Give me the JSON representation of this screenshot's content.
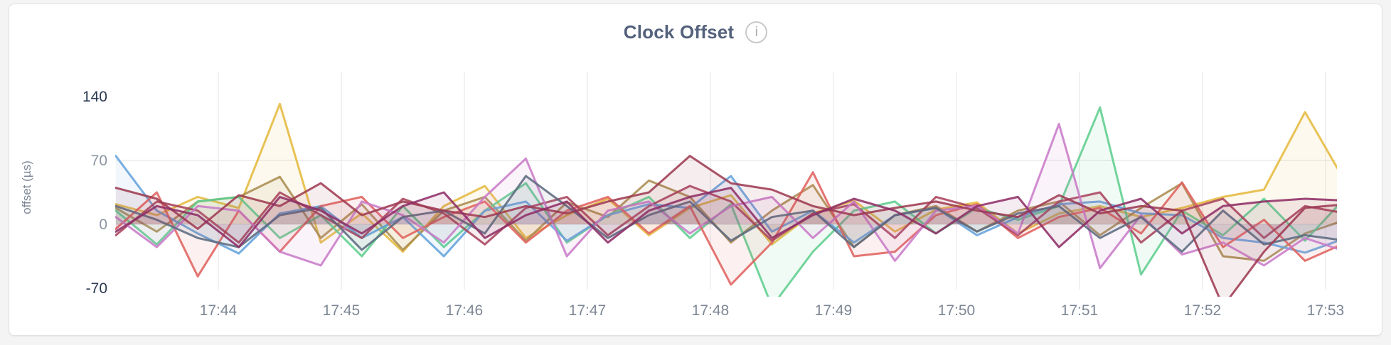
{
  "page": {
    "background": "#f4f4f5"
  },
  "card": {
    "background": "#ffffff",
    "border_color": "#e2e2e4"
  },
  "header": {
    "title": "Clock Offset",
    "info_icon_glyph": "i"
  },
  "chart_data": {
    "type": "line",
    "title": "Clock Offset",
    "ylabel": "offset (µs)",
    "x_first_time": "17:43:10",
    "x_interval_sec": 20,
    "x_point_count": 31,
    "x_tick_labels": [
      "17:44",
      "17:45",
      "17:46",
      "17:47",
      "17:48",
      "17:49",
      "17:50",
      "17:51",
      "17:52",
      "17:53"
    ],
    "x_first_tick_offset_sec": 50,
    "x_tick_interval_sec": 60,
    "ylim": [
      -70,
      140
    ],
    "yticks": [
      {
        "label": "140",
        "value": 140,
        "emphasis": true
      },
      {
        "label": "70",
        "value": 70,
        "emphasis": false
      },
      {
        "label": "0",
        "value": 0,
        "emphasis": false
      },
      {
        "label": "-70",
        "value": -70,
        "emphasis": true
      }
    ],
    "grid": {
      "h_values": [
        70,
        0
      ],
      "color": "#ececec",
      "vertical_per_tick": true
    },
    "legend": "none",
    "axis_colors": {
      "tick_strong": "#2c3a52",
      "tick_muted": "#8c95a3",
      "x_tick": "#7c8694"
    },
    "series": [
      {
        "name": "gold",
        "color": "#E5B93F",
        "values": [
          22,
          10,
          30,
          18,
          132,
          -20,
          12,
          -30,
          20,
          42,
          -15,
          10,
          28,
          -12,
          18,
          32,
          -22,
          12,
          26,
          -8,
          16,
          24,
          -10,
          12,
          20,
          8,
          18,
          30,
          38,
          123,
          45
        ]
      },
      {
        "name": "khaki",
        "color": "#AA8C50",
        "values": [
          18,
          -8,
          25,
          30,
          52,
          -15,
          22,
          -28,
          15,
          30,
          -18,
          24,
          8,
          48,
          30,
          -20,
          15,
          43,
          -25,
          10,
          20,
          -8,
          15,
          25,
          -12,
          18,
          45,
          -35,
          -40,
          -10,
          5
        ]
      },
      {
        "name": "green",
        "color": "#5FCE8E",
        "values": [
          15,
          -22,
          25,
          30,
          -15,
          10,
          -35,
          20,
          -25,
          15,
          45,
          -20,
          10,
          30,
          -15,
          22,
          -90,
          -30,
          15,
          25,
          -10,
          18,
          5,
          20,
          128,
          -55,
          15,
          -12,
          28,
          -18,
          30
        ]
      },
      {
        "name": "blue",
        "color": "#64A3DC",
        "values": [
          75,
          15,
          -10,
          -32,
          12,
          20,
          -15,
          8,
          -35,
          15,
          25,
          -18,
          10,
          22,
          18,
          53,
          -8,
          15,
          -20,
          10,
          18,
          -12,
          8,
          22,
          25,
          12,
          10,
          -15,
          -20,
          -31,
          -15
        ]
      },
      {
        "name": "salmon",
        "color": "#E0625E",
        "values": [
          -5,
          35,
          -57,
          15,
          -30,
          20,
          30,
          -15,
          8,
          25,
          -20,
          15,
          30,
          -10,
          20,
          -66,
          -20,
          57,
          -35,
          -30,
          10,
          22,
          -15,
          8,
          18,
          -10,
          46,
          -25,
          5,
          -40,
          -20
        ]
      },
      {
        "name": "maroon",
        "color": "#A8435C",
        "values": [
          -12,
          25,
          15,
          -20,
          35,
          10,
          -15,
          28,
          12,
          -22,
          18,
          30,
          -12,
          20,
          42,
          25,
          -18,
          12,
          22,
          -15,
          30,
          18,
          -12,
          25,
          35,
          -20,
          15,
          28,
          -15,
          20,
          12
        ]
      },
      {
        "name": "orchid",
        "color": "#C97BC8",
        "values": [
          8,
          -25,
          20,
          15,
          -30,
          -45,
          25,
          10,
          -20,
          30,
          72,
          -35,
          15,
          25,
          -10,
          20,
          30,
          -15,
          25,
          -40,
          15,
          20,
          -10,
          110,
          -48,
          10,
          -33,
          -20,
          -45,
          -15,
          -30
        ]
      },
      {
        "name": "slate",
        "color": "#5C6B80",
        "values": [
          20,
          5,
          -15,
          -25,
          10,
          18,
          -28,
          8,
          15,
          -10,
          53,
          20,
          -15,
          10,
          25,
          -18,
          8,
          15,
          -25,
          10,
          18,
          -8,
          12,
          20,
          -15,
          8,
          -30,
          15,
          -22,
          -12,
          -18
        ]
      },
      {
        "name": "wine",
        "color": "#9E3B52",
        "values": [
          40,
          28,
          -5,
          32,
          20,
          45,
          10,
          25,
          15,
          8,
          20,
          12,
          25,
          35,
          75,
          45,
          38,
          20,
          10,
          18,
          25,
          15,
          8,
          32,
          12,
          20,
          15,
          -90,
          -30,
          18,
          22
        ]
      },
      {
        "name": "plum",
        "color": "#8E2F66",
        "values": [
          -8,
          20,
          10,
          -25,
          30,
          15,
          -10,
          20,
          35,
          -15,
          10,
          25,
          -20,
          15,
          30,
          40,
          -15,
          10,
          28,
          15,
          -10,
          20,
          30,
          -25,
          15,
          28,
          -10,
          20,
          25,
          28,
          26
        ]
      }
    ]
  }
}
